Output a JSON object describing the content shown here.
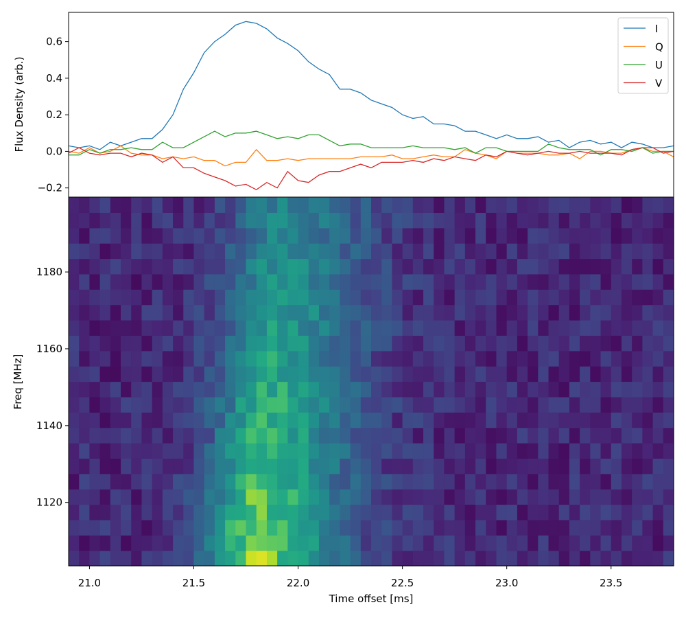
{
  "chart_data": [
    {
      "type": "line",
      "title": "",
      "xlabel": "",
      "ylabel": "Flux Density (arb.)",
      "xlim": [
        20.9,
        23.8
      ],
      "ylim": [
        -0.25,
        0.76
      ],
      "yticks": [
        -0.2,
        0.0,
        0.2,
        0.4,
        0.6
      ],
      "ytick_labels": [
        "−0.2",
        "0.0",
        "0.2",
        "0.4",
        "0.6"
      ],
      "grid": false,
      "legend_position": "top-right",
      "x": [
        20.9,
        20.95,
        21.0,
        21.05,
        21.1,
        21.15,
        21.2,
        21.25,
        21.3,
        21.35,
        21.4,
        21.45,
        21.5,
        21.55,
        21.6,
        21.65,
        21.7,
        21.75,
        21.8,
        21.85,
        21.9,
        21.95,
        22.0,
        22.05,
        22.1,
        22.15,
        22.2,
        22.25,
        22.3,
        22.35,
        22.4,
        22.45,
        22.5,
        22.55,
        22.6,
        22.65,
        22.7,
        22.75,
        22.8,
        22.85,
        22.9,
        22.95,
        23.0,
        23.05,
        23.1,
        23.15,
        23.2,
        23.25,
        23.3,
        23.35,
        23.4,
        23.45,
        23.5,
        23.55,
        23.6,
        23.65,
        23.7,
        23.75,
        23.8
      ],
      "series": [
        {
          "name": "I",
          "color": "#1f77b4",
          "values": [
            0.03,
            0.02,
            0.03,
            0.01,
            0.05,
            0.03,
            0.05,
            0.07,
            0.07,
            0.12,
            0.2,
            0.34,
            0.43,
            0.54,
            0.6,
            0.64,
            0.69,
            0.71,
            0.7,
            0.67,
            0.62,
            0.59,
            0.55,
            0.49,
            0.45,
            0.42,
            0.34,
            0.34,
            0.32,
            0.28,
            0.26,
            0.24,
            0.2,
            0.18,
            0.19,
            0.15,
            0.15,
            0.14,
            0.11,
            0.11,
            0.09,
            0.07,
            0.09,
            0.07,
            0.07,
            0.08,
            0.05,
            0.06,
            0.02,
            0.05,
            0.06,
            0.04,
            0.05,
            0.02,
            0.05,
            0.04,
            0.02,
            0.02,
            0.03
          ]
        },
        {
          "name": "Q",
          "color": "#ff7f0e",
          "values": [
            0.0,
            -0.01,
            0.02,
            -0.01,
            0.0,
            0.03,
            -0.01,
            -0.02,
            -0.02,
            -0.04,
            -0.03,
            -0.04,
            -0.03,
            -0.05,
            -0.05,
            -0.08,
            -0.06,
            -0.06,
            0.01,
            -0.05,
            -0.05,
            -0.04,
            -0.05,
            -0.04,
            -0.04,
            -0.04,
            -0.04,
            -0.04,
            -0.03,
            -0.03,
            -0.03,
            -0.02,
            -0.04,
            -0.04,
            -0.03,
            -0.02,
            -0.03,
            -0.03,
            0.01,
            -0.01,
            -0.02,
            -0.04,
            0.0,
            -0.01,
            -0.01,
            -0.01,
            -0.02,
            -0.02,
            -0.01,
            -0.04,
            0.0,
            0.0,
            -0.01,
            -0.01,
            0.01,
            0.02,
            0.0,
            0.0,
            -0.03
          ]
        },
        {
          "name": "U",
          "color": "#2ca02c",
          "values": [
            -0.02,
            -0.02,
            0.01,
            -0.01,
            0.01,
            0.01,
            0.02,
            0.01,
            0.01,
            0.05,
            0.02,
            0.02,
            0.05,
            0.08,
            0.11,
            0.08,
            0.1,
            0.1,
            0.11,
            0.09,
            0.07,
            0.08,
            0.07,
            0.09,
            0.09,
            0.06,
            0.03,
            0.04,
            0.04,
            0.02,
            0.02,
            0.02,
            0.02,
            0.03,
            0.02,
            0.02,
            0.02,
            0.01,
            0.02,
            -0.01,
            0.02,
            0.02,
            0.0,
            0.0,
            0.0,
            0.0,
            0.04,
            0.02,
            0.01,
            0.01,
            0.01,
            -0.02,
            0.01,
            0.01,
            0.0,
            0.02,
            -0.01,
            0.0,
            0.0
          ]
        },
        {
          "name": "V",
          "color": "#d62728",
          "values": [
            -0.01,
            0.02,
            -0.01,
            -0.02,
            -0.01,
            -0.01,
            -0.03,
            -0.01,
            -0.02,
            -0.06,
            -0.03,
            -0.09,
            -0.09,
            -0.12,
            -0.14,
            -0.16,
            -0.19,
            -0.18,
            -0.21,
            -0.17,
            -0.2,
            -0.11,
            -0.16,
            -0.17,
            -0.13,
            -0.11,
            -0.11,
            -0.09,
            -0.07,
            -0.09,
            -0.06,
            -0.06,
            -0.06,
            -0.05,
            -0.06,
            -0.04,
            -0.05,
            -0.03,
            -0.04,
            -0.05,
            -0.02,
            -0.03,
            0.0,
            -0.01,
            -0.02,
            -0.01,
            0.0,
            -0.01,
            -0.01,
            0.0,
            -0.01,
            -0.01,
            -0.01,
            -0.02,
            0.01,
            0.02,
            0.02,
            -0.01,
            0.0
          ]
        }
      ]
    },
    {
      "type": "heatmap",
      "title": "",
      "xlabel": "Time offset [ms]",
      "ylabel": "Freq [MHz]",
      "xlim": [
        20.9,
        23.8
      ],
      "ylim": [
        1103.5,
        1199.5
      ],
      "xticks": [
        21.0,
        21.5,
        22.0,
        22.5,
        23.0,
        23.5
      ],
      "xtick_labels": [
        "21.0",
        "21.5",
        "22.0",
        "22.5",
        "23.0",
        "23.5"
      ],
      "yticks": [
        1120,
        1140,
        1160,
        1180
      ],
      "ytick_labels": [
        "1120",
        "1140",
        "1160",
        "1180"
      ],
      "colormap": "viridis",
      "grid": false,
      "time_bins": 58,
      "time_start": 20.9,
      "time_step": 0.05,
      "freq_start": 1103.5,
      "freq_step": 4,
      "freq_channels": 24,
      "burst_center_ms": 21.78,
      "burst_freq_peak_mhz": 1115
    }
  ]
}
